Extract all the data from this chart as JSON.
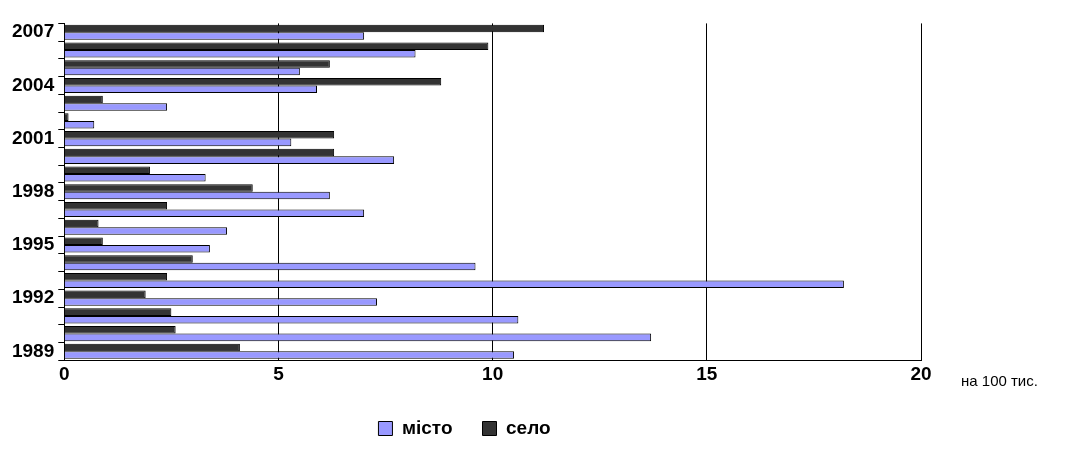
{
  "chart_data": {
    "type": "bar",
    "orientation": "horizontal",
    "xlabel": "на 100 тис.",
    "categories": [
      "2007",
      null,
      null,
      "2004",
      null,
      null,
      "2001",
      null,
      null,
      "1998",
      null,
      null,
      "1995",
      null,
      null,
      "1992",
      null,
      null,
      "1989"
    ],
    "series": [
      {
        "name": "місто",
        "color": "#9999ff",
        "values": [
          7.0,
          8.2,
          5.5,
          5.9,
          2.4,
          0.7,
          5.3,
          7.7,
          3.3,
          6.2,
          7.0,
          3.8,
          3.4,
          9.6,
          18.2,
          7.3,
          10.6,
          13.7,
          10.5
        ]
      },
      {
        "name": "село",
        "color": "#333333",
        "values": [
          11.2,
          9.9,
          6.2,
          8.8,
          0.9,
          0.1,
          6.3,
          6.3,
          2.0,
          4.4,
          2.4,
          0.8,
          0.9,
          3.0,
          2.4,
          1.9,
          2.5,
          2.6,
          4.1
        ]
      }
    ],
    "xlim": [
      0,
      20
    ],
    "xticks": [
      0,
      5,
      10,
      15,
      20
    ],
    "grid": "x",
    "legend": "bottom"
  }
}
